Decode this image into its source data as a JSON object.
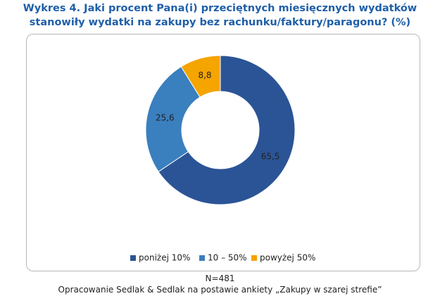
{
  "chart_data": {
    "type": "donut",
    "title": "Wykres 4. Jaki procent Pana(i) przeciętnych miesięcznych wydatków stanowiły wydatki na zakupy bez rachunku/faktury/paragonu?  (%)",
    "categories": [
      "poniżej 10%",
      "10 – 50%",
      "powyżej 50%"
    ],
    "values": [
      65.5,
      25.6,
      8.8
    ],
    "value_labels": [
      "65,5",
      "25,6",
      "8,8"
    ],
    "colors": [
      "#2b5496",
      "#3a7fbe",
      "#f5a400"
    ],
    "note": "N=481",
    "source": "Opracowanie Sedlak & Sedlak na postawie ankiety „Zakupy w szarej strefie”"
  }
}
